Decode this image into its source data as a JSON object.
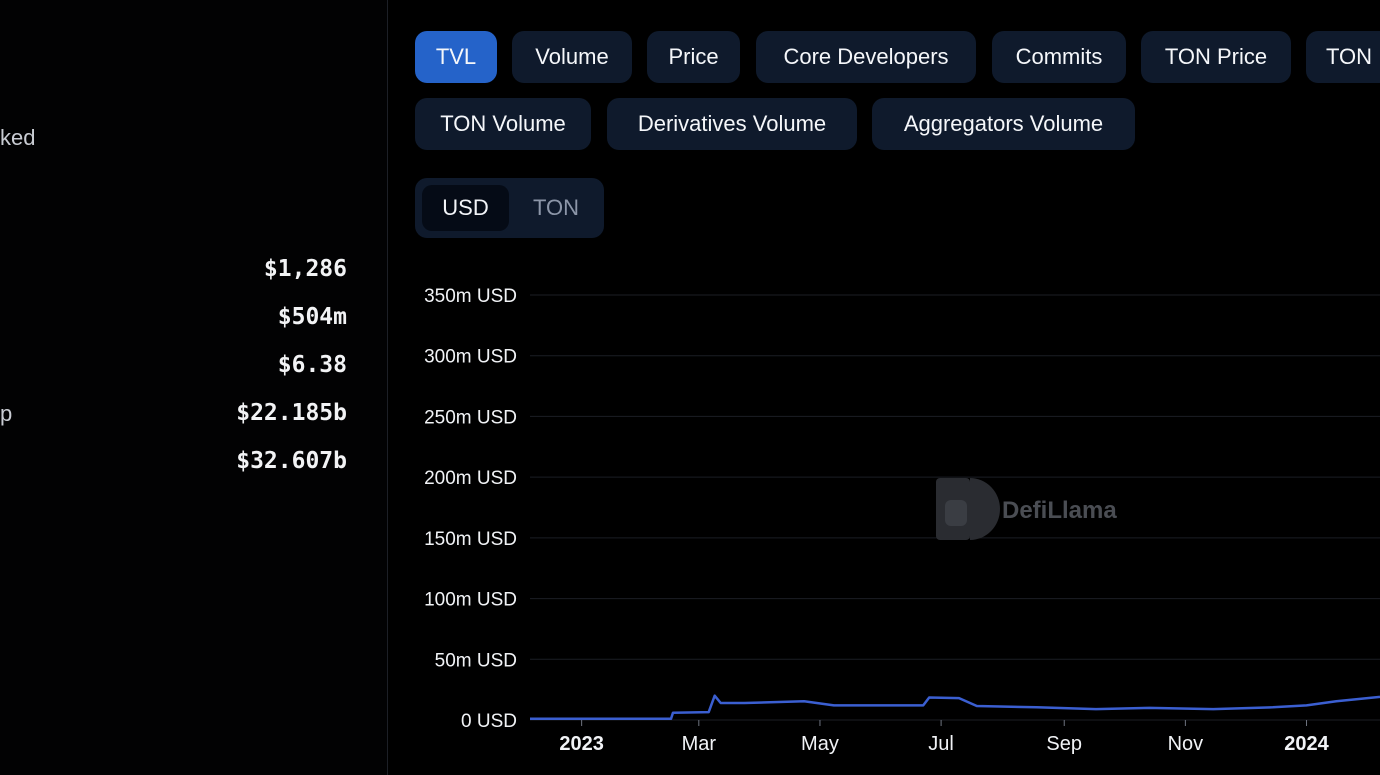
{
  "left_panel": {
    "partial_labels": [
      "ked",
      "p"
    ],
    "stats": [
      "$1,286",
      "$504m",
      "$6.38",
      "$22.185b",
      "$32.607b"
    ]
  },
  "tabs": [
    "TVL",
    "Volume",
    "Price",
    "Core Developers",
    "Commits",
    "TON Price",
    "TON",
    "TON Volume",
    "Derivatives Volume",
    "Aggregators Volume"
  ],
  "active_tab": "TVL",
  "currency_toggle": {
    "options": [
      "USD",
      "TON"
    ],
    "selected": "USD"
  },
  "watermark": {
    "text": "DefiLlama"
  },
  "colors": {
    "accent": "#2563c9",
    "line": "#3b5fd1",
    "button_bg": "#0f1a2c"
  },
  "chart_data": {
    "type": "line",
    "title": "",
    "xlabel": "",
    "ylabel": "",
    "y_unit": "USD",
    "ylim": [
      0,
      350000000
    ],
    "y_ticks": [
      "0 USD",
      "50m USD",
      "100m USD",
      "150m USD",
      "200m USD",
      "250m USD",
      "300m USD",
      "350m USD"
    ],
    "y_tick_values": [
      0,
      50000000,
      100000000,
      150000000,
      200000000,
      250000000,
      300000000,
      350000000
    ],
    "x_ticks": [
      {
        "label": "2023",
        "date": "2023-01-01",
        "bold": true
      },
      {
        "label": "Mar",
        "date": "2023-03-01",
        "bold": false
      },
      {
        "label": "May",
        "date": "2023-05-01",
        "bold": false
      },
      {
        "label": "Jul",
        "date": "2023-07-01",
        "bold": false
      },
      {
        "label": "Sep",
        "date": "2023-09-01",
        "bold": false
      },
      {
        "label": "Nov",
        "date": "2023-11-01",
        "bold": false
      },
      {
        "label": "2024",
        "date": "2024-01-01",
        "bold": true
      }
    ],
    "grid": true,
    "series": [
      {
        "x": [
          "2022-12-06",
          "2023-02-15",
          "2023-02-16",
          "2023-03-06",
          "2023-03-09",
          "2023-03-12",
          "2023-03-24",
          "2023-04-23",
          "2023-05-08",
          "2023-06-22",
          "2023-06-25",
          "2023-07-10",
          "2023-07-19",
          "2023-08-18",
          "2023-09-17",
          "2023-10-14",
          "2023-11-15",
          "2023-12-15",
          "2024-01-01",
          "2024-01-16",
          "2024-02-07"
        ],
        "y": [
          1000000,
          1000000,
          6000000,
          6500000,
          20000000,
          14000000,
          14000000,
          15500000,
          12000000,
          12000000,
          18500000,
          18000000,
          11500000,
          10500000,
          9000000,
          10000000,
          9000000,
          10500000,
          12000000,
          15500000,
          19000000
        ]
      }
    ]
  }
}
